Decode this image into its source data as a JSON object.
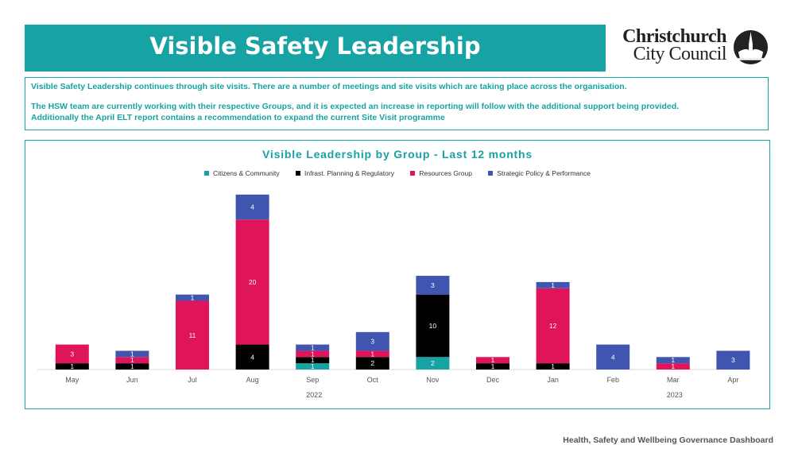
{
  "header": {
    "title": "Visible Safety Leadership"
  },
  "logo": {
    "line1": "Christchurch",
    "line2": "City Council"
  },
  "intro": {
    "line1": "Visible Safety Leadership continues through site visits. There are a number of meetings and site visits which are taking place across the organisation.",
    "line2": "The HSW team are currently working with their respective Groups, and it is expected an increase in reporting will follow with the additional support being provided.",
    "line3": "Additionally the April ELT report contains a recommendation to expand the current Site Visit programme"
  },
  "footer": {
    "text": "Health, Safety and Wellbeing Governance Dashboard"
  },
  "colors": {
    "accent": "#17a3a3",
    "citizens": "#17a3a3",
    "infrast": "#000000",
    "resources": "#e0145a",
    "strategic": "#4055b0"
  },
  "chart_data": {
    "type": "bar",
    "stacked": true,
    "title": "Visible Leadership by Group - Last 12 months",
    "categories": [
      "May",
      "Jun",
      "Jul",
      "Aug",
      "Sep",
      "Oct",
      "Nov",
      "Dec",
      "Jan",
      "Feb",
      "Mar",
      "Apr"
    ],
    "year_labels": [
      {
        "label": "2022",
        "from": 0,
        "to": 8
      },
      {
        "label": "2023",
        "from": 9,
        "to": 11
      }
    ],
    "series": [
      {
        "name": "Citizens & Community",
        "color": "#17a3a3",
        "values": [
          0,
          0,
          0,
          0,
          1,
          0,
          2,
          0,
          0,
          0,
          0,
          0
        ]
      },
      {
        "name": "Infrast. Planning & Regulatory",
        "color": "#000000",
        "values": [
          1,
          1,
          0,
          4,
          1,
          2,
          10,
          1,
          1,
          0,
          0,
          0
        ]
      },
      {
        "name": "Resources Group",
        "color": "#e0145a",
        "values": [
          3,
          1,
          11,
          20,
          1,
          1,
          0,
          1,
          12,
          0,
          1,
          0
        ]
      },
      {
        "name": "Strategic Policy & Performance",
        "color": "#4055b0",
        "values": [
          0,
          1,
          1,
          4,
          1,
          3,
          3,
          0,
          1,
          4,
          1,
          3
        ]
      }
    ],
    "ylim": [
      0,
      29
    ],
    "legend_position": "top",
    "grid": false
  }
}
